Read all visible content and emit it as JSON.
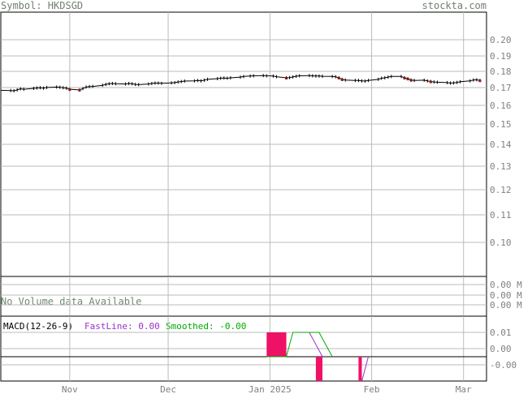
{
  "header": {
    "symbol": "Symbol: HKDSGD",
    "site": "stockta.com"
  },
  "colors": {
    "frame": "#000000",
    "grid": "#bbbbbb",
    "text_gray": "#708070",
    "price_line": "#000000",
    "candle_down": "#8b1a1a",
    "macd_fast": "#9933cc",
    "macd_smooth": "#00aa00",
    "macd_hist": "#ee1166",
    "volume_text": "#6f8a6f"
  },
  "chart_data": [
    {
      "type": "line",
      "panel": "price",
      "y_tick_labels": [
        "0.20",
        "0.19",
        "0.18",
        "0.17",
        "0.16",
        "0.15",
        "0.14",
        "0.13",
        "0.12",
        "0.11",
        "0.10"
      ],
      "ylim": [
        0.09,
        0.2
      ],
      "grid": true,
      "x_tick_labels": [
        "Nov",
        "Dec",
        "Jan 2025",
        "Feb",
        "Mar"
      ],
      "series": [
        {
          "x": [
            "2024-10-11",
            "2024-10-14",
            "2024-10-15",
            "2024-10-16",
            "2024-10-17",
            "2024-10-18",
            "2024-10-21",
            "2024-10-22",
            "2024-10-23",
            "2024-10-24",
            "2024-10-25",
            "2024-10-28",
            "2024-10-29",
            "2024-10-30",
            "2024-10-31",
            "2024-11-01",
            "2024-11-04",
            "2024-11-05",
            "2024-11-06",
            "2024-11-07",
            "2024-11-08",
            "2024-11-11",
            "2024-11-12",
            "2024-11-13",
            "2024-11-14",
            "2024-11-15",
            "2024-11-18",
            "2024-11-19",
            "2024-11-20",
            "2024-11-21",
            "2024-11-22",
            "2024-11-25",
            "2024-11-26",
            "2024-11-27",
            "2024-11-28",
            "2024-11-29",
            "2024-12-02",
            "2024-12-03",
            "2024-12-04",
            "2024-12-05",
            "2024-12-06",
            "2024-12-09",
            "2024-12-10",
            "2024-12-11",
            "2024-12-12",
            "2024-12-13",
            "2024-12-16",
            "2024-12-17",
            "2024-12-18",
            "2024-12-19",
            "2024-12-20",
            "2024-12-23",
            "2024-12-24",
            "2024-12-26",
            "2024-12-27",
            "2024-12-30",
            "2024-12-31",
            "2025-01-02",
            "2025-01-03",
            "2025-01-06",
            "2025-01-07",
            "2025-01-08",
            "2025-01-09",
            "2025-01-10",
            "2025-01-13",
            "2025-01-14",
            "2025-01-15",
            "2025-01-16",
            "2025-01-17",
            "2025-01-20",
            "2025-01-21",
            "2025-01-22",
            "2025-01-23",
            "2025-01-24",
            "2025-01-27",
            "2025-01-28",
            "2025-01-29",
            "2025-01-30",
            "2025-01-31",
            "2025-02-03",
            "2025-02-04",
            "2025-02-05",
            "2025-02-06",
            "2025-02-07",
            "2025-02-10",
            "2025-02-11",
            "2025-02-12",
            "2025-02-13",
            "2025-02-14",
            "2025-02-17",
            "2025-02-18",
            "2025-02-19",
            "2025-02-20",
            "2025-02-21",
            "2025-02-24",
            "2025-02-25",
            "2025-02-26",
            "2025-02-27",
            "2025-02-28",
            "2025-03-03",
            "2025-03-04",
            "2025-03-05",
            "2025-03-06"
          ],
          "y": [
            0.1695,
            0.1694,
            0.1693,
            0.1697,
            0.1702,
            0.17,
            0.1704,
            0.1706,
            0.1707,
            0.1705,
            0.1708,
            0.171,
            0.1709,
            0.1707,
            0.1705,
            0.17,
            0.1697,
            0.1703,
            0.171,
            0.1712,
            0.1713,
            0.1718,
            0.1722,
            0.1725,
            0.1726,
            0.1725,
            0.1724,
            0.1726,
            0.1725,
            0.1722,
            0.1721,
            0.1724,
            0.1726,
            0.1728,
            0.1728,
            0.1727,
            0.1729,
            0.173,
            0.1733,
            0.1735,
            0.1737,
            0.1738,
            0.174,
            0.1738,
            0.1741,
            0.1745,
            0.1748,
            0.175,
            0.1751,
            0.175,
            0.1752,
            0.1755,
            0.1758,
            0.176,
            0.1761,
            0.1762,
            0.1761,
            0.176,
            0.1757,
            0.1752,
            0.1753,
            0.1756,
            0.1759,
            0.1761,
            0.1762,
            0.1761,
            0.176,
            0.176,
            0.1759,
            0.1758,
            0.1757,
            0.1752,
            0.1745,
            0.1742,
            0.174,
            0.174,
            0.1738,
            0.1737,
            0.174,
            0.1745,
            0.175,
            0.1752,
            0.1755,
            0.1758,
            0.1758,
            0.1752,
            0.1748,
            0.1742,
            0.174,
            0.1741,
            0.1738,
            0.1735,
            0.1733,
            0.1732,
            0.173,
            0.1728,
            0.1729,
            0.1731,
            0.1734,
            0.1738,
            0.1742,
            0.1743,
            0.174
          ]
        }
      ]
    },
    {
      "type": "bar",
      "panel": "volume",
      "note_text": "No Volume data Available",
      "y_tick_labels": [
        "0.00 M",
        "0.00 M",
        "0.00 M"
      ]
    },
    {
      "type": "line",
      "panel": "macd",
      "label": "MACD(12-26-9)",
      "fast_label": "FastLine: 0.00",
      "smooth_label": "Smoothed: -0.00",
      "y_tick_labels": [
        "0.01",
        "0.00",
        "-0.00"
      ]
    }
  ]
}
